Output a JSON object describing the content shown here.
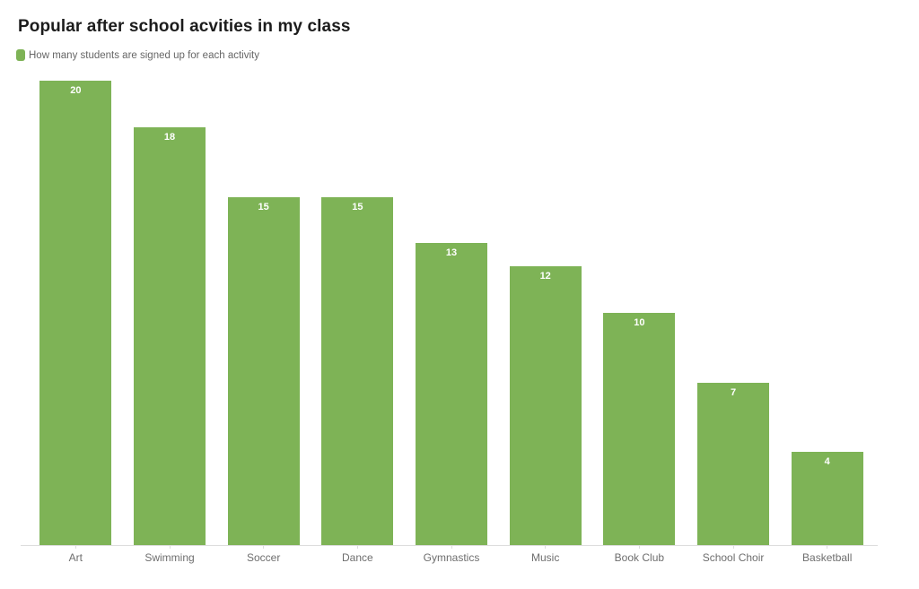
{
  "chart_data": {
    "type": "bar",
    "title": "Popular after school acvities in my class",
    "series_label": "How many students are signed up for each activity",
    "categories": [
      "Art",
      "Swimming",
      "Soccer",
      "Dance",
      "Gymnastics",
      "Music",
      "Book Club",
      "School Choir",
      "Basketball"
    ],
    "values": [
      20,
      18,
      15,
      15,
      13,
      12,
      10,
      7,
      4
    ],
    "ylim": [
      0,
      20
    ],
    "grid": false,
    "legend_position": "top-left",
    "value_label_position": "inside-top",
    "orientation": "vertical",
    "bar_color": "#7eb356",
    "value_label_color": "#ffffff",
    "category_label_color": "#6e6e6e",
    "axis_line_color": "#dddddd",
    "title_color": "#1c1c1c",
    "legend_text_color": "#666666",
    "background_color": "#ffffff"
  }
}
